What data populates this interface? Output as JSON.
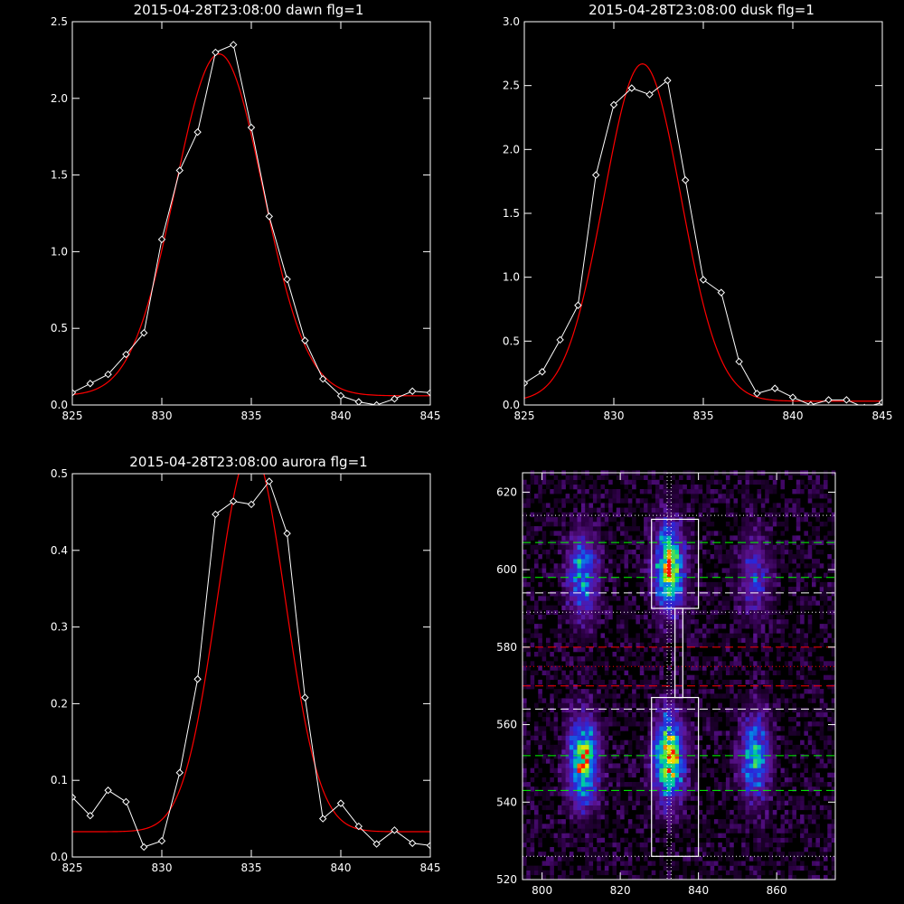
{
  "chart_data": [
    {
      "type": "line",
      "title": "2015-04-28T23:08:00 dawn flg=1",
      "xlim": [
        825,
        845
      ],
      "ylim": [
        0,
        2.5
      ],
      "xticks": [
        "825",
        "830",
        "835",
        "840",
        "845"
      ],
      "yticks": [
        "0.0",
        "0.5",
        "1.0",
        "1.5",
        "2.0",
        "2.5"
      ],
      "series": [
        {
          "role": "data",
          "color": "#ffffff",
          "x": [
            825,
            826,
            827,
            828,
            829,
            830,
            831,
            832,
            833,
            834,
            835,
            836,
            837,
            838,
            839,
            840,
            841,
            842,
            843,
            844,
            845
          ],
          "y": [
            0.08,
            0.14,
            0.2,
            0.33,
            0.47,
            1.08,
            1.53,
            1.78,
            2.3,
            2.35,
            1.81,
            1.23,
            0.82,
            0.42,
            0.17,
            0.06,
            0.02,
            0.0,
            0.04,
            0.09,
            0.08
          ]
        },
        {
          "role": "fit",
          "color": "#ff0000",
          "center": 833.2,
          "sigma": 2.45,
          "amplitude": 2.23,
          "baseline": 0.06
        }
      ]
    },
    {
      "type": "line",
      "title": "2015-04-28T23:08:00 dusk flg=1",
      "xlim": [
        825,
        845
      ],
      "ylim": [
        0,
        3.0
      ],
      "xticks": [
        "825",
        "830",
        "835",
        "840",
        "845"
      ],
      "yticks": [
        "0.0",
        "0.5",
        "1.0",
        "1.5",
        "2.0",
        "2.5",
        "3.0"
      ],
      "series": [
        {
          "role": "data",
          "color": "#ffffff",
          "x": [
            825,
            826,
            827,
            828,
            829,
            830,
            831,
            832,
            833,
            834,
            835,
            836,
            837,
            838,
            839,
            840,
            841,
            842,
            843,
            844,
            845
          ],
          "y": [
            0.17,
            0.26,
            0.51,
            0.78,
            1.8,
            2.35,
            2.48,
            2.43,
            2.54,
            1.76,
            0.98,
            0.88,
            0.34,
            0.09,
            0.13,
            0.06,
            0.0,
            0.04,
            0.04,
            -0.02,
            0.02
          ]
        },
        {
          "role": "fit",
          "color": "#ff0000",
          "center": 831.6,
          "sigma": 2.15,
          "amplitude": 2.64,
          "baseline": 0.03
        }
      ]
    },
    {
      "type": "line",
      "title": "2015-04-28T23:08:00 aurora flg=1",
      "xlim": [
        825,
        845
      ],
      "ylim": [
        0,
        0.5
      ],
      "xticks": [
        "825",
        "830",
        "835",
        "840",
        "845"
      ],
      "yticks": [
        "0.0",
        "0.1",
        "0.2",
        "0.3",
        "0.4",
        "0.5"
      ],
      "series": [
        {
          "role": "data",
          "color": "#ffffff",
          "x": [
            825,
            826,
            827,
            828,
            829,
            830,
            831,
            832,
            833,
            834,
            835,
            836,
            837,
            838,
            839,
            840,
            841,
            842,
            843,
            844,
            845
          ],
          "y": [
            0.078,
            0.054,
            0.087,
            0.072,
            0.013,
            0.021,
            0.11,
            0.232,
            0.447,
            0.464,
            0.46,
            0.49,
            0.422,
            0.208,
            0.05,
            0.07,
            0.04,
            0.017,
            0.035,
            0.018,
            0.015
          ]
        },
        {
          "role": "fit",
          "color": "#ff0000",
          "center": 835.0,
          "sigma": 1.9,
          "amplitude": 0.5,
          "baseline": 0.033
        }
      ]
    },
    {
      "type": "heatmap",
      "xlim": [
        795,
        875
      ],
      "ylim": [
        520,
        625
      ],
      "xticks": [
        "800",
        "820",
        "840",
        "860"
      ],
      "yticks": [
        "520",
        "540",
        "560",
        "580",
        "600",
        "620"
      ],
      "blobs": [
        {
          "x": 810,
          "y": 598,
          "intensity": 0.55
        },
        {
          "x": 832,
          "y": 600,
          "intensity": 0.9
        },
        {
          "x": 854,
          "y": 598,
          "intensity": 0.35
        },
        {
          "x": 810,
          "y": 550,
          "intensity": 0.85
        },
        {
          "x": 832,
          "y": 551,
          "intensity": 0.95
        },
        {
          "x": 854,
          "y": 551,
          "intensity": 0.6
        }
      ],
      "boxes": [
        {
          "x0": 828,
          "x1": 840,
          "y0": 590,
          "y1": 613
        },
        {
          "x0": 828,
          "x1": 840,
          "y0": 526,
          "y1": 567
        },
        {
          "x0": 834,
          "x1": 836,
          "y0": 567,
          "y1": 590
        }
      ],
      "vlines": [
        {
          "x": 832,
          "style": "dotted",
          "color": "#ffffff"
        },
        {
          "x": 833,
          "style": "dotted",
          "color": "#ffffff"
        }
      ],
      "hlines": [
        {
          "y": 614,
          "style": "dotted",
          "color": "#ffffff"
        },
        {
          "y": 607,
          "style": "dashed",
          "color": "#00ff00"
        },
        {
          "y": 598,
          "style": "dashed",
          "color": "#00ff00"
        },
        {
          "y": 594,
          "style": "dashed",
          "color": "#ffffff"
        },
        {
          "y": 589,
          "style": "dotted",
          "color": "#ffffff"
        },
        {
          "y": 580,
          "style": "dashed",
          "color": "#ff0000"
        },
        {
          "y": 575,
          "style": "dotted",
          "color": "#ff0000"
        },
        {
          "y": 570,
          "style": "dashed",
          "color": "#ff0000"
        },
        {
          "y": 564,
          "style": "dashed",
          "color": "#ffffff"
        },
        {
          "y": 552,
          "style": "dashed",
          "color": "#00ff00"
        },
        {
          "y": 543,
          "style": "dashed",
          "color": "#00ff00"
        },
        {
          "y": 526,
          "style": "dotted",
          "color": "#ffffff"
        }
      ]
    }
  ]
}
